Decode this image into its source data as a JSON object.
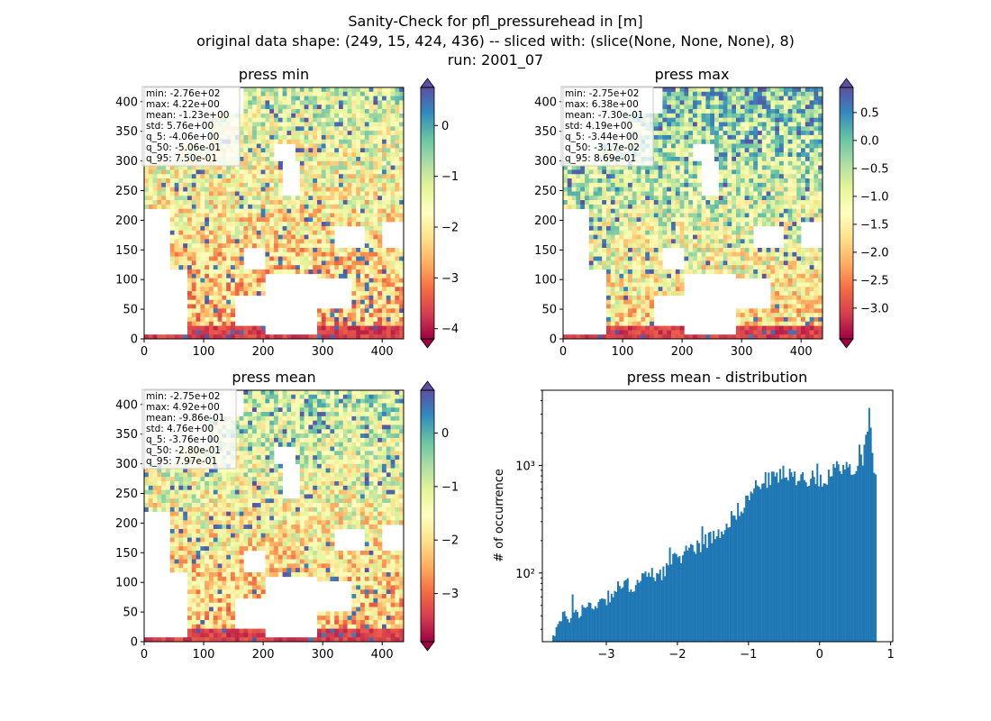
{
  "figure": {
    "title_lines": [
      "Sanity-Check for pfl_pressurehead in [m]",
      "original data shape: (249, 15, 424, 436) -- sliced with: (slice(None, None, None), 8)",
      "run: 2001_07"
    ]
  },
  "colormap": [
    "#9e0142",
    "#d53e4f",
    "#f46d43",
    "#fdae61",
    "#fee08b",
    "#ffffbf",
    "#e6f598",
    "#abdda4",
    "#66c2a5",
    "#3288bd",
    "#5e4fa2"
  ],
  "chart_data": [
    {
      "type": "heatmap",
      "title": "press min",
      "x_ticks": [
        0,
        100,
        200,
        300,
        400
      ],
      "y_ticks": [
        0,
        50,
        100,
        150,
        200,
        250,
        300,
        350,
        400
      ],
      "xlim": [
        0,
        436
      ],
      "ylim": [
        0,
        424
      ],
      "colorbar": {
        "vmin": -4.2,
        "vmax": 0.75,
        "ticks": [
          0,
          -1,
          -2,
          -3,
          -4
        ],
        "tick_labels": [
          "0",
          "−1",
          "−2",
          "−3",
          "−4"
        ]
      },
      "stats": [
        "min: -2.76e+02",
        "max: 4.22e+00",
        "mean: -1.23e+00",
        "std: 5.76e+00",
        "q_5: -4.06e+00",
        "q_50: -5.06e-01",
        "q_95: 7.50e-01"
      ]
    },
    {
      "type": "heatmap",
      "title": "press max",
      "x_ticks": [
        0,
        100,
        200,
        300,
        400
      ],
      "y_ticks": [
        0,
        50,
        100,
        150,
        200,
        250,
        300,
        350,
        400
      ],
      "xlim": [
        0,
        436
      ],
      "ylim": [
        0,
        424
      ],
      "colorbar": {
        "vmin": -3.55,
        "vmax": 0.95,
        "ticks": [
          0.5,
          0,
          -0.5,
          -1,
          -1.5,
          -2,
          -2.5,
          -3
        ],
        "tick_labels": [
          "0.5",
          "0.0",
          "−0.5",
          "−1.0",
          "−1.5",
          "−2.0",
          "−2.5",
          "−3.0"
        ]
      },
      "stats": [
        "min: -2.75e+02",
        "max: 6.38e+00",
        "mean: -7.30e-01",
        "std: 4.19e+00",
        "q_5: -3.44e+00",
        "q_50: -3.17e-02",
        "q_95: 8.69e-01"
      ]
    },
    {
      "type": "heatmap",
      "title": "press mean",
      "x_ticks": [
        0,
        100,
        200,
        300,
        400
      ],
      "y_ticks": [
        0,
        50,
        100,
        150,
        200,
        250,
        300,
        350,
        400
      ],
      "xlim": [
        0,
        436
      ],
      "ylim": [
        0,
        424
      ],
      "colorbar": {
        "vmin": -3.9,
        "vmax": 0.8,
        "ticks": [
          0,
          -1,
          -2,
          -3
        ],
        "tick_labels": [
          "0",
          "−1",
          "−2",
          "−3"
        ]
      },
      "stats": [
        "min: -2.75e+02",
        "max: 4.92e+00",
        "mean: -9.86e-01",
        "std: 4.76e+00",
        "q_5: -3.76e+00",
        "q_50: -2.80e-01",
        "q_95: 7.97e-01"
      ]
    },
    {
      "type": "bar",
      "title": "press mean - distribution",
      "ylabel": "# of occurrence",
      "xlabel": "",
      "y_scale": "log",
      "xlim": [
        -3.9,
        1.03
      ],
      "ylim": [
        23,
        5000
      ],
      "x_ticks": [
        -3,
        -2,
        -1,
        0,
        1
      ],
      "x_tick_labels": [
        "−3",
        "−2",
        "−1",
        "0",
        "1"
      ],
      "y_ticks": [
        100,
        1000
      ],
      "y_tick_labels": [
        "10²",
        "10³"
      ],
      "bar_color": "#1f77b4",
      "bin_range": [
        -3.76,
        0.8
      ],
      "bin_count": 200,
      "anchor_counts": [
        [
          -3.76,
          28
        ],
        [
          -3.6,
          38
        ],
        [
          -3.4,
          45
        ],
        [
          -3.2,
          50
        ],
        [
          -3.0,
          60
        ],
        [
          -2.8,
          75
        ],
        [
          -2.6,
          80
        ],
        [
          -2.4,
          95
        ],
        [
          -2.2,
          105
        ],
        [
          -2.1,
          120
        ],
        [
          -2.0,
          140
        ],
        [
          -1.8,
          175
        ],
        [
          -1.6,
          200
        ],
        [
          -1.4,
          250
        ],
        [
          -1.2,
          350
        ],
        [
          -1.0,
          500
        ],
        [
          -0.9,
          640
        ],
        [
          -0.8,
          720
        ],
        [
          -0.6,
          800
        ],
        [
          -0.4,
          800
        ],
        [
          -0.2,
          780
        ],
        [
          0.0,
          750
        ],
        [
          0.1,
          800
        ],
        [
          0.2,
          900
        ],
        [
          0.3,
          850
        ],
        [
          0.4,
          880
        ],
        [
          0.5,
          950
        ],
        [
          0.6,
          1150
        ],
        [
          0.65,
          1800
        ],
        [
          0.68,
          2600
        ],
        [
          0.7,
          3800
        ],
        [
          0.72,
          2200
        ],
        [
          0.75,
          1000
        ],
        [
          0.78,
          800
        ],
        [
          0.8,
          650
        ]
      ]
    }
  ]
}
